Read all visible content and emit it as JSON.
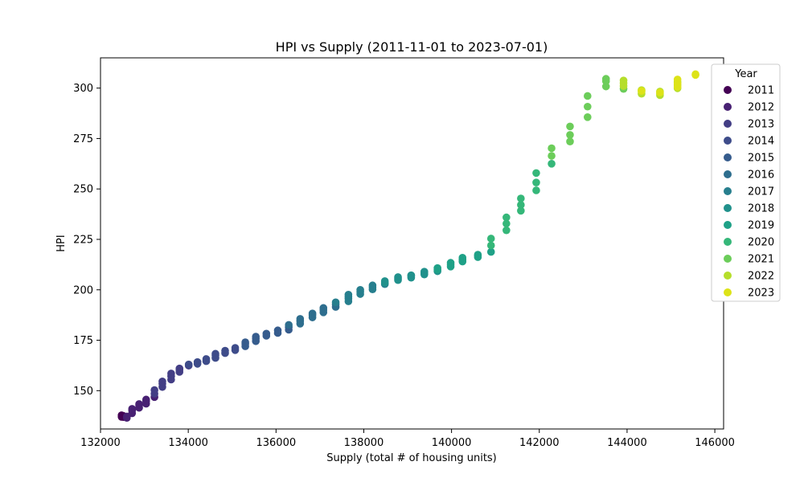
{
  "chart_data": {
    "type": "scatter",
    "title": "HPI vs Supply (2011-11-01 to 2023-07-01)",
    "xlabel": "Supply (total # of housing units)",
    "ylabel": "HPI",
    "xlim": [
      132000,
      146200
    ],
    "ylim": [
      131,
      315
    ],
    "xticks": [
      132000,
      134000,
      136000,
      138000,
      140000,
      142000,
      144000,
      146000
    ],
    "xtick_labels": [
      "132000",
      "134000",
      "136000",
      "138000",
      "140000",
      "142000",
      "144000",
      "146000"
    ],
    "yticks": [
      150,
      175,
      200,
      225,
      250,
      275,
      300
    ],
    "ytick_labels": [
      "150",
      "175",
      "200",
      "225",
      "250",
      "275",
      "300"
    ],
    "grid": false,
    "legend": {
      "title": "Year",
      "placement": "upper-right-outside"
    },
    "series": [
      {
        "name": "2011",
        "color": "#440154",
        "points": [
          [
            132480,
            137.0
          ],
          [
            132480,
            137.8
          ],
          [
            132520,
            136.9
          ],
          [
            132520,
            137.5
          ]
        ]
      },
      {
        "name": "2012",
        "color": "#482173",
        "points": [
          [
            132600,
            136.5
          ],
          [
            132600,
            137.2
          ],
          [
            132720,
            138.8
          ],
          [
            132720,
            140.2
          ],
          [
            132720,
            141.0
          ],
          [
            132880,
            141.5
          ],
          [
            132880,
            142.8
          ],
          [
            132880,
            143.4
          ],
          [
            133040,
            143.5
          ],
          [
            133040,
            144.8
          ],
          [
            133040,
            145.6
          ],
          [
            133230,
            146.8
          ]
        ]
      },
      {
        "name": "2013",
        "color": "#433e85",
        "points": [
          [
            133230,
            148.5
          ],
          [
            133230,
            150.3
          ],
          [
            133410,
            151.8
          ],
          [
            133410,
            153.5
          ],
          [
            133410,
            154.6
          ],
          [
            133610,
            155.5
          ],
          [
            133610,
            157.2
          ],
          [
            133610,
            158.5
          ],
          [
            133800,
            159.3
          ],
          [
            133800,
            160.4
          ],
          [
            133800,
            161.0
          ],
          [
            134010,
            162.4
          ]
        ]
      },
      {
        "name": "2014",
        "color": "#3e4c8a",
        "points": [
          [
            134010,
            163.0
          ],
          [
            134210,
            163.3
          ],
          [
            134210,
            164.2
          ],
          [
            134410,
            164.6
          ],
          [
            134410,
            165.7
          ],
          [
            134620,
            166.2
          ],
          [
            134620,
            167.5
          ],
          [
            134620,
            168.3
          ],
          [
            134840,
            168.6
          ],
          [
            134840,
            169.8
          ],
          [
            135070,
            170.1
          ],
          [
            135070,
            171.2
          ]
        ]
      },
      {
        "name": "2015",
        "color": "#365c8d",
        "points": [
          [
            135300,
            172.0
          ],
          [
            135300,
            173.2
          ],
          [
            135300,
            174.0
          ],
          [
            135540,
            174.5
          ],
          [
            135540,
            175.8
          ],
          [
            135540,
            176.8
          ],
          [
            135780,
            177.2
          ],
          [
            135780,
            178.3
          ],
          [
            136040,
            178.6
          ],
          [
            136040,
            179.9
          ],
          [
            136290,
            180.2
          ],
          [
            136290,
            181.5
          ]
        ]
      },
      {
        "name": "2016",
        "color": "#2e6e8e",
        "points": [
          [
            136290,
            182.6
          ],
          [
            136550,
            183.2
          ],
          [
            136550,
            184.5
          ],
          [
            136550,
            185.6
          ],
          [
            136830,
            186.3
          ],
          [
            136830,
            187.5
          ],
          [
            136830,
            188.3
          ],
          [
            137080,
            188.8
          ],
          [
            137080,
            190.0
          ],
          [
            137080,
            191.0
          ],
          [
            137360,
            191.5
          ],
          [
            137360,
            192.8
          ]
        ]
      },
      {
        "name": "2017",
        "color": "#277f8e",
        "points": [
          [
            137360,
            193.8
          ],
          [
            137650,
            194.3
          ],
          [
            137650,
            195.6
          ],
          [
            137650,
            196.6
          ],
          [
            137650,
            197.6
          ],
          [
            137920,
            197.9
          ],
          [
            137920,
            199.0
          ],
          [
            137920,
            200.0
          ],
          [
            138200,
            200.2
          ],
          [
            138200,
            201.3
          ],
          [
            138200,
            202.2
          ],
          [
            138480,
            202.8
          ]
        ]
      },
      {
        "name": "2018",
        "color": "#21918c",
        "points": [
          [
            138480,
            203.5
          ],
          [
            138480,
            204.3
          ],
          [
            138780,
            204.8
          ],
          [
            138780,
            205.6
          ],
          [
            138780,
            206.3
          ],
          [
            139080,
            206.0
          ],
          [
            139080,
            206.8
          ],
          [
            139080,
            207.2
          ],
          [
            139380,
            207.6
          ],
          [
            139380,
            208.3
          ],
          [
            139380,
            209.0
          ],
          [
            139680,
            209.2
          ]
        ]
      },
      {
        "name": "2019",
        "color": "#1fa187",
        "points": [
          [
            139680,
            210.0
          ],
          [
            139680,
            210.8
          ],
          [
            139980,
            211.5
          ],
          [
            139980,
            212.5
          ],
          [
            139980,
            213.4
          ],
          [
            140250,
            214.0
          ],
          [
            140250,
            215.0
          ],
          [
            140250,
            215.9
          ],
          [
            140600,
            216.2
          ],
          [
            140600,
            217.0
          ],
          [
            140600,
            217.4
          ],
          [
            140900,
            218.8
          ]
        ]
      },
      {
        "name": "2020",
        "color": "#35b779",
        "points": [
          [
            140900,
            222.0
          ],
          [
            140900,
            225.4
          ],
          [
            141250,
            229.5
          ],
          [
            141250,
            232.8
          ],
          [
            141250,
            235.9
          ],
          [
            141580,
            239.2
          ],
          [
            141580,
            242.1
          ],
          [
            141580,
            245.3
          ],
          [
            141930,
            249.3
          ],
          [
            141930,
            253.2
          ],
          [
            141930,
            257.9
          ],
          [
            142280,
            262.5
          ]
        ]
      },
      {
        "name": "2021",
        "color": "#6ccd5a",
        "points": [
          [
            142280,
            266.4
          ],
          [
            142280,
            270.2
          ],
          [
            142700,
            273.5
          ],
          [
            142700,
            276.8
          ],
          [
            142700,
            281.0
          ],
          [
            143100,
            285.6
          ],
          [
            143100,
            290.8
          ],
          [
            143100,
            296.1
          ],
          [
            143520,
            300.8
          ],
          [
            143520,
            303.4
          ],
          [
            143520,
            304.6
          ],
          [
            143920,
            299.6
          ]
        ]
      },
      {
        "name": "2022",
        "color": "#b5de2b",
        "points": [
          [
            143920,
            301.0
          ],
          [
            143920,
            302.4
          ],
          [
            143920,
            303.8
          ],
          [
            144330,
            297.2
          ],
          [
            144330,
            298.3
          ],
          [
            144330,
            299.0
          ],
          [
            144750,
            296.5
          ],
          [
            144750,
            297.3
          ],
          [
            144750,
            298.3
          ],
          [
            145150,
            299.9
          ],
          [
            145150,
            301.5
          ],
          [
            145150,
            303.0
          ]
        ]
      },
      {
        "name": "2023",
        "color": "#dde318",
        "points": [
          [
            145150,
            304.3
          ],
          [
            145560,
            306.5
          ],
          [
            144750,
            297.8
          ],
          [
            145150,
            300.6
          ],
          [
            145150,
            302.3
          ],
          [
            145560,
            306.9
          ],
          [
            144330,
            298.6
          ]
        ]
      }
    ]
  }
}
